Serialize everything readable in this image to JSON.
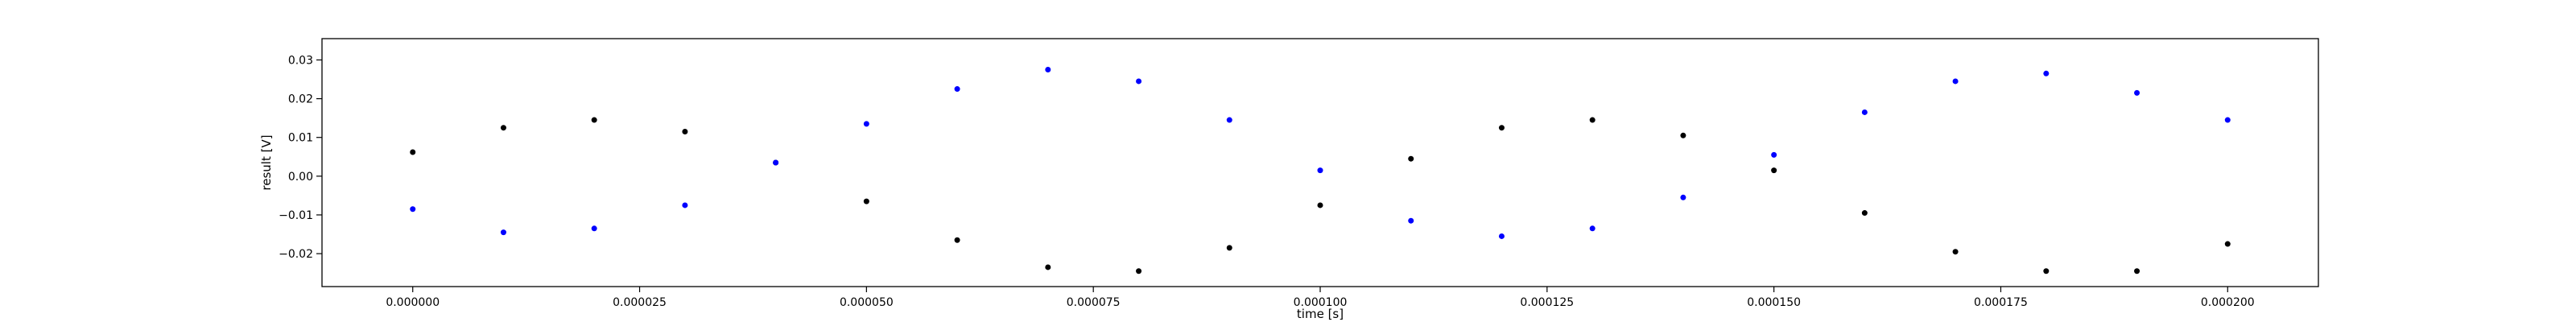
{
  "chart_data": {
    "type": "scatter",
    "title": "",
    "xlabel": "time [s]",
    "ylabel": "result [V]",
    "xlim": [
      -1e-05,
      0.00021
    ],
    "ylim": [
      -0.0285,
      0.0355
    ],
    "grid": false,
    "x_ticks": [
      0.0,
      2.5e-05,
      5e-05,
      7.5e-05,
      0.0001,
      0.000125,
      0.00015,
      0.000175,
      0.0002
    ],
    "x_tick_labels": [
      "0.000000",
      "0.000025",
      "0.000050",
      "0.000075",
      "0.000100",
      "0.000125",
      "0.000150",
      "0.000175",
      "0.000200"
    ],
    "y_ticks": [
      -0.02,
      -0.01,
      0.0,
      0.01,
      0.02,
      0.03
    ],
    "y_tick_labels": [
      "−0.02",
      "−0.01",
      "0.00",
      "0.01",
      "0.02",
      "0.03"
    ],
    "series": [
      {
        "color": "#000000",
        "x": [
          0.0,
          1e-05,
          2e-05,
          3e-05,
          4e-05,
          5e-05,
          6e-05,
          7e-05,
          8e-05,
          9e-05,
          0.0001,
          0.00011,
          0.00012,
          0.00013,
          0.00014,
          0.00015,
          0.00016,
          0.00017,
          0.00018,
          0.00019,
          0.0002
        ],
        "y": [
          0.0062,
          0.0125,
          0.0145,
          0.0115,
          0.0035,
          -0.0065,
          -0.0165,
          -0.0235,
          -0.0245,
          -0.0185,
          -0.0075,
          0.0045,
          0.0125,
          0.0145,
          0.0105,
          0.0015,
          -0.0095,
          -0.0195,
          -0.0245,
          -0.0245,
          -0.0175
        ]
      },
      {
        "color": "#0000ff",
        "x": [
          0.0,
          1e-05,
          2e-05,
          3e-05,
          4e-05,
          5e-05,
          6e-05,
          7e-05,
          8e-05,
          9e-05,
          0.0001,
          0.00011,
          0.00012,
          0.00013,
          0.00014,
          0.00015,
          0.00016,
          0.00017,
          0.00018,
          0.00019,
          0.0002
        ],
        "y": [
          -0.0085,
          -0.0145,
          -0.0135,
          -0.0075,
          0.0035,
          0.0135,
          0.0225,
          0.0275,
          0.0245,
          0.0145,
          0.0015,
          -0.0115,
          -0.0155,
          -0.0135,
          -0.0055,
          0.0055,
          0.0165,
          0.0245,
          0.0265,
          0.0215,
          0.0145
        ]
      }
    ]
  }
}
